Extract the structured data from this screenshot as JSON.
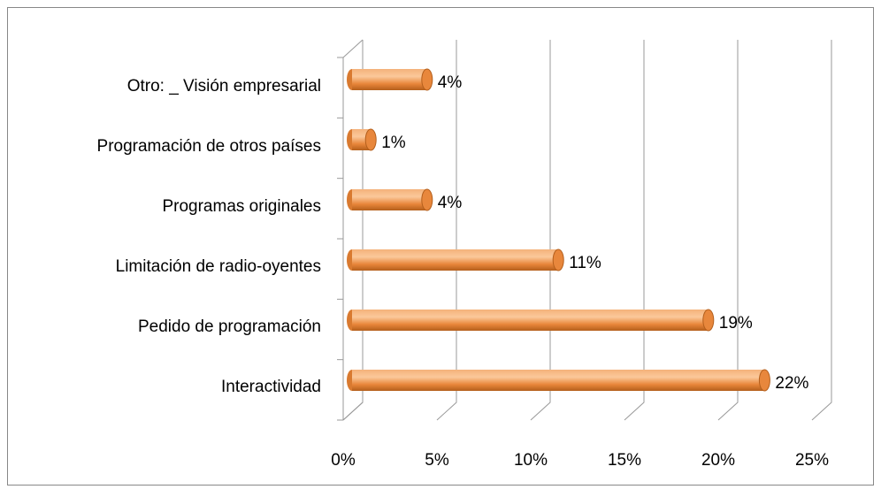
{
  "chart_data": {
    "type": "bar",
    "orientation": "horizontal",
    "categories": [
      "Otro: _ Visión empresarial",
      "Programación de otros países",
      "Programas originales",
      "Limitación de radio-oyentes",
      "Pedido de programación",
      "Interactividad"
    ],
    "values": [
      4,
      1,
      4,
      11,
      19,
      22
    ],
    "value_labels": [
      "4%",
      "1%",
      "4%",
      "11%",
      "19%",
      "22%"
    ],
    "color": "#f79646",
    "xlim": [
      0,
      25
    ],
    "xticks": [
      {
        "value": 0,
        "label": "0%"
      },
      {
        "value": 5,
        "label": "5%"
      },
      {
        "value": 10,
        "label": "10%"
      },
      {
        "value": 15,
        "label": "15%"
      },
      {
        "value": 20,
        "label": "20%"
      },
      {
        "value": 25,
        "label": "25%"
      }
    ],
    "grid": true
  }
}
